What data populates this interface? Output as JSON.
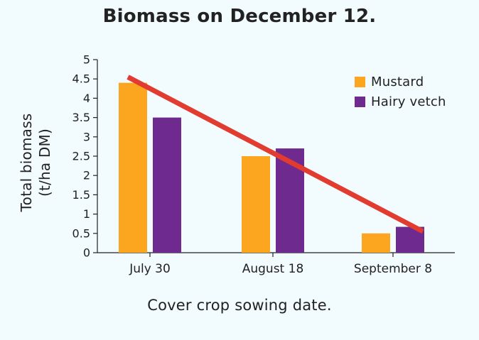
{
  "chart_data": {
    "type": "bar",
    "title": "Biomass on December 12.",
    "xlabel": "Cover crop sowing date.",
    "ylabel_lines": [
      "Total biomass",
      "(t/ha DM)"
    ],
    "categories": [
      "July 30",
      "August 18",
      "September 8"
    ],
    "series": [
      {
        "name": "Mustard",
        "values": [
          4.4,
          2.5,
          0.5
        ],
        "color": "#fba61e"
      },
      {
        "name": "Hairy vetch",
        "values": [
          3.5,
          2.7,
          0.67
        ],
        "color": "#6f2a8f"
      }
    ],
    "ylim": [
      0,
      5
    ],
    "yticks": [
      "0",
      "0.5",
      "1",
      "1.5",
      "2",
      "2.5",
      "3",
      "3.5",
      "4",
      "4.5",
      "5"
    ],
    "trend_line": {
      "y_start": 4.55,
      "y_end": 0.55,
      "color": "#e23b30"
    },
    "grid": false,
    "legend_position": "top-right"
  }
}
